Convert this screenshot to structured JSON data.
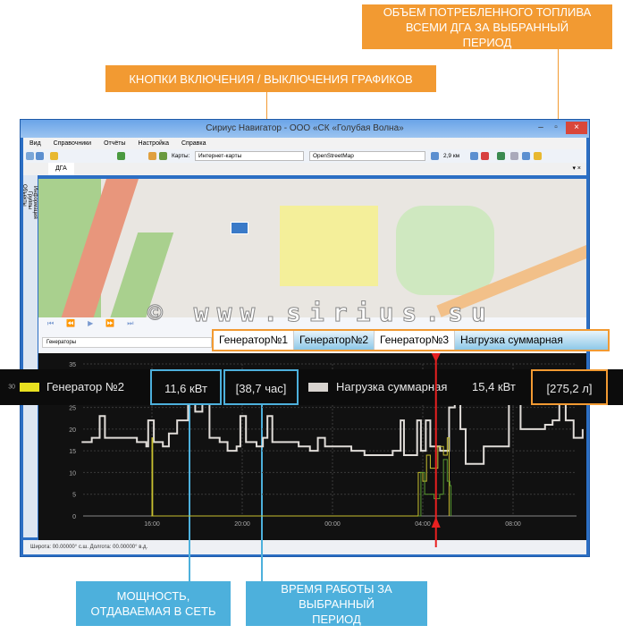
{
  "annotations": {
    "fuel": "ОБЪЕМ ПОТРЕБЛЕННОГО ТОПЛИВА ВСЕМИ ДГА ЗА ВЫБРАННЫЙ ПЕРИОД",
    "toggle": "КНОПКИ ВКЛЮЧЕНИЯ / ВЫКЛЮЧЕНИЯ ГРАФИКОВ",
    "power": "МОЩНОСТЬ, ОТДАВАЕМАЯ В СЕТЬ",
    "runtime": "ВРЕМЯ РАБОТЫ ЗА ВЫБРАННЫЙ ПЕРИОД",
    "color_orange": "#f29a32",
    "color_blue": "#4db0dc"
  },
  "window": {
    "title": "Сириус Навигатор - ООО «СК «Голубая Волна»",
    "menu": [
      "Вид",
      "Справочники",
      "Отчёты",
      "Настройка",
      "Справка"
    ],
    "toolbar": {
      "maps_label": "Карты:",
      "map_type": "Интернет-карты",
      "map_source": "OpenStreetMap",
      "scale": "2,9 км"
    },
    "doc_tab": "ДГА",
    "side_tabs": [
      "Информация",
      "Группы",
      "Объекты"
    ],
    "group_select": "Генераторы",
    "status": "Широта: 00.00000° с.ш. Долгота: 00.00000° в.д."
  },
  "watermark": "© www.sirius.su",
  "chart_tabs": [
    "Генератор№1",
    "Генератор№2",
    "Генератор№3",
    "Нагрузка суммарная"
  ],
  "legend": {
    "gen_name": "Генератор №2",
    "gen_power": "11,6 кВт",
    "gen_time": "[38,7 час]",
    "gen_color": "#e8e020",
    "total_name": "Нагрузка суммарная",
    "total_power": "15,4 кВт",
    "total_fuel": "[275,2 л]",
    "total_color": "#d8d4d0"
  },
  "chart_data": {
    "type": "line",
    "ylim": [
      0,
      35
    ],
    "yticks": [
      "0",
      "5",
      "10",
      "15",
      "20",
      "25",
      "30",
      "35"
    ],
    "xticks": [
      "16:00",
      "20:00",
      "00:00",
      "04:00",
      "08:00"
    ],
    "grid": true,
    "cursor": "04:35",
    "series": [
      {
        "name": "Нагрузка суммарная",
        "color": "#e0dcd8",
        "points": [
          [
            "12:53",
            17
          ],
          [
            "13:20",
            18
          ],
          [
            "13:41",
            23
          ],
          [
            "13:55",
            18
          ],
          [
            "14:34",
            18
          ],
          [
            "15:20",
            17
          ],
          [
            "15:45",
            16
          ],
          [
            "15:50",
            22
          ],
          [
            "16:05",
            17
          ],
          [
            "16:29",
            16
          ],
          [
            "16:45",
            19
          ],
          [
            "17:07",
            22
          ],
          [
            "17:36",
            28
          ],
          [
            "17:55",
            24
          ],
          [
            "18:14",
            30
          ],
          [
            "18:33",
            18
          ],
          [
            "19:00",
            17
          ],
          [
            "19:21",
            15
          ],
          [
            "19:45",
            16
          ],
          [
            "19:55",
            23
          ],
          [
            "20:10",
            17
          ],
          [
            "20:38",
            16
          ],
          [
            "20:55",
            18
          ],
          [
            "21:07",
            23
          ],
          [
            "21:20",
            17
          ],
          [
            "21:55",
            17
          ],
          [
            "22:30",
            16
          ],
          [
            "23:00",
            15
          ],
          [
            "23:21",
            18
          ],
          [
            "23:40",
            16
          ],
          [
            "00:18",
            16
          ],
          [
            "00:50",
            15
          ],
          [
            "01:25",
            14
          ],
          [
            "02:10",
            14
          ],
          [
            "02:40",
            15
          ],
          [
            "03:01",
            22
          ],
          [
            "03:10",
            14
          ],
          [
            "03:25",
            14
          ],
          [
            "03:45",
            22
          ],
          [
            "03:55",
            15
          ],
          [
            "04:08",
            22
          ],
          [
            "04:20",
            16
          ],
          [
            "04:46",
            15
          ],
          [
            "05:10",
            25
          ],
          [
            "05:25",
            30
          ],
          [
            "05:40",
            20
          ],
          [
            "05:54",
            12
          ],
          [
            "06:30",
            12
          ],
          [
            "06:42",
            16
          ],
          [
            "07:10",
            16
          ],
          [
            "07:30",
            16
          ],
          [
            "07:49",
            28
          ],
          [
            "08:00",
            26
          ],
          [
            "08:20",
            20
          ],
          [
            "08:37",
            20
          ],
          [
            "09:00",
            20
          ],
          [
            "09:25",
            21
          ],
          [
            "09:45",
            22
          ],
          [
            "10:03",
            27
          ],
          [
            "10:20",
            22
          ],
          [
            "10:41",
            18
          ],
          [
            "11:05",
            20
          ]
        ]
      },
      {
        "name": "Генератор №2",
        "color": "#c8c030",
        "points": [
          [
            "15:58",
            0
          ],
          [
            "16:00",
            18
          ],
          [
            "16:02",
            0
          ],
          [
            "03:45",
            0
          ],
          [
            "03:48",
            10
          ],
          [
            "04:00",
            8
          ],
          [
            "04:10",
            14
          ],
          [
            "04:20",
            11
          ],
          [
            "04:40",
            16
          ],
          [
            "04:55",
            14
          ],
          [
            "05:05",
            18
          ],
          [
            "05:10",
            0
          ]
        ]
      },
      {
        "name": "Генератор №3",
        "color": "#5a9a30",
        "points": [
          [
            "03:48",
            0
          ],
          [
            "03:55",
            10
          ],
          [
            "04:05",
            5
          ],
          [
            "04:30",
            4
          ],
          [
            "04:45",
            5
          ],
          [
            "04:55",
            13
          ],
          [
            "05:05",
            8
          ],
          [
            "05:12",
            7
          ],
          [
            "05:15",
            0
          ]
        ]
      }
    ]
  }
}
